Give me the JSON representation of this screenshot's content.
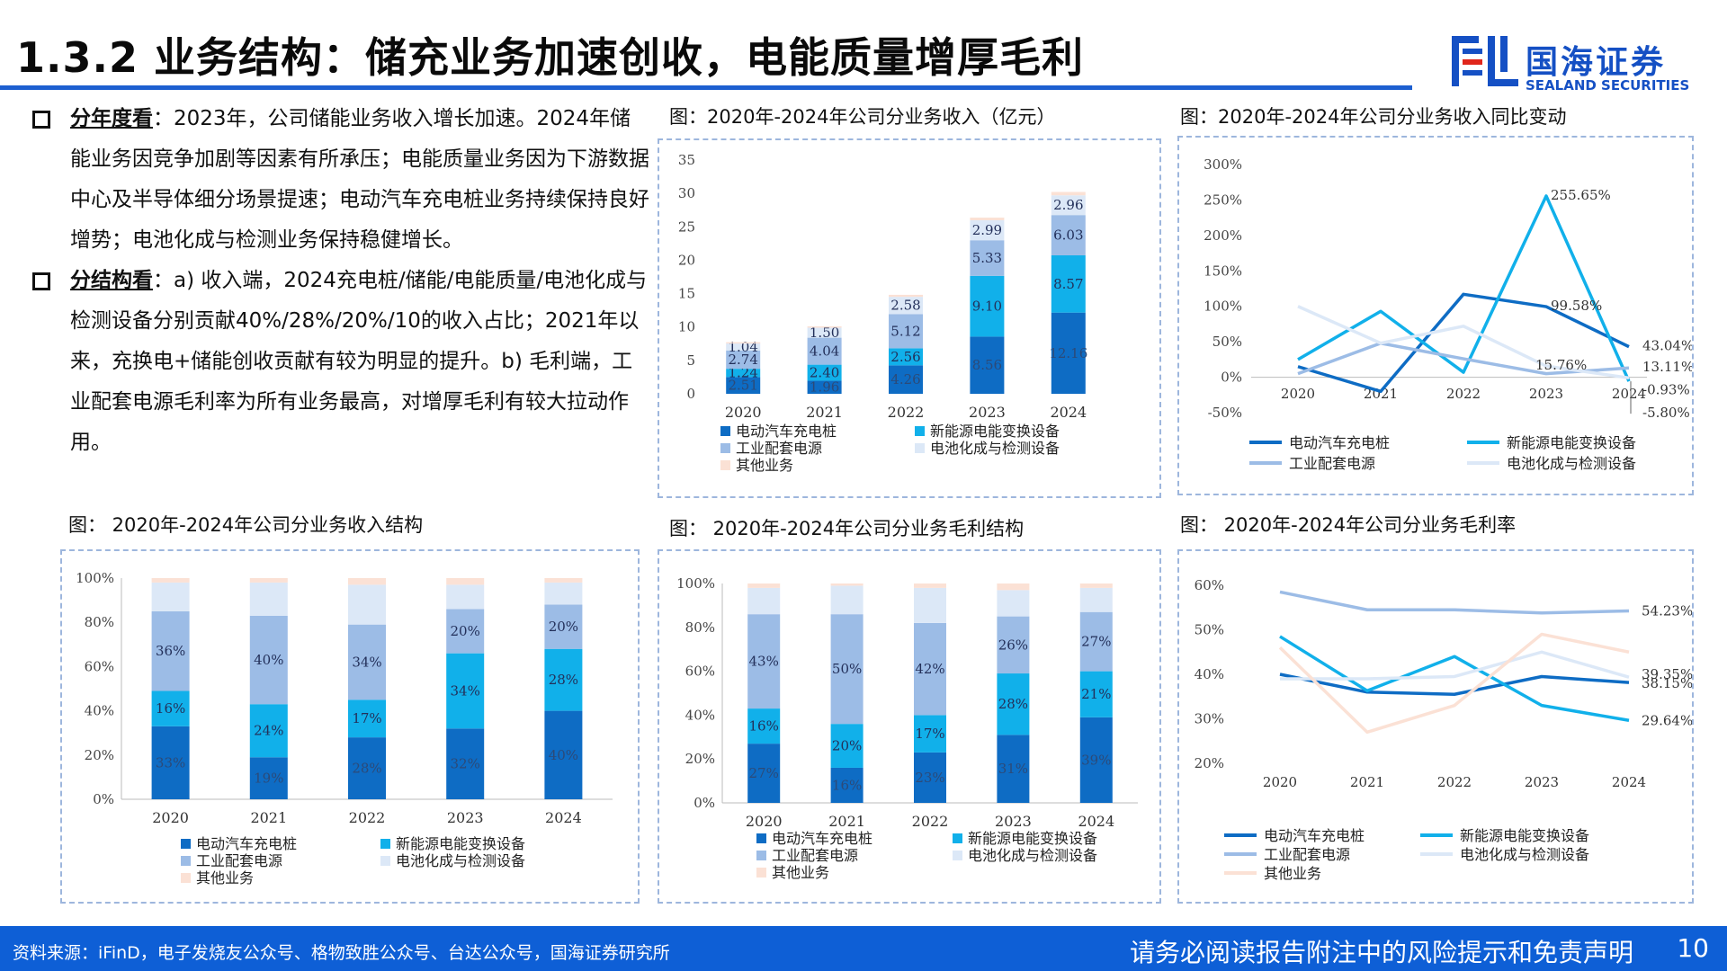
{
  "slide": {
    "title": "1.3.2 业务结构：储充业务加速创收，电能质量增厚毛利",
    "logo_cn": "国海证券",
    "logo_en": "SEALAND SECURITIES",
    "footer_source": "资料来源：iFinD，电子发烧友公众号、格物致胜公众号、台达公众号，国海证券研究所",
    "footer_notice": "请务必阅读报告附注中的风险提示和免责声明",
    "page_number": "10"
  },
  "text": {
    "bullet1_head": "分年度看",
    "bullet1_body": "：2023年，公司储能业务收入增长加速。2024年储能业务因竞争加剧等因素有所承压；电能质量业务因为下游数据中心及半导体细分场景提速；电动汽车充电桩业务持续保持良好增势；电池化成与检测业务保持稳健增长。",
    "bullet2_head": "分结构看",
    "bullet2_body": "：a) 收入端，2024充电桩/储能/电能质量/电池化成与检测设备分别贡献40%/28%/20%/10的收入占比；2021年以来，充换电+储能创收贡献有较为明显的提升。b) 毛利端，工业配套电源毛利率为所有业务最高，对增厚毛利有较大拉动作用。"
  },
  "colors": {
    "ev": "#0e6cc4",
    "nev": "#11b0ea",
    "ind": "#9cbce6",
    "bat": "#dce8f7",
    "oth": "#fbe1d5"
  },
  "chart_data": [
    {
      "id": "revenue",
      "type": "bar",
      "stacked": true,
      "title": "图：2020年-2024年公司分业务收入（亿元）",
      "categories": [
        "2020",
        "2021",
        "2022",
        "2023",
        "2024"
      ],
      "ylim": [
        0,
        35
      ],
      "yticks": [
        "0",
        "5",
        "10",
        "15",
        "20",
        "25",
        "30",
        "35"
      ],
      "series": [
        {
          "name": "电动汽车充电桩",
          "color_key": "ev",
          "values": [
            2.51,
            1.96,
            4.26,
            8.56,
            12.16
          ],
          "labels": [
            "2.51",
            "1.96",
            "4.26",
            "8.56",
            "12.16"
          ]
        },
        {
          "name": "新能源电能变换设备",
          "color_key": "nev",
          "values": [
            1.24,
            2.4,
            2.56,
            9.1,
            8.57
          ],
          "labels": [
            "1.24",
            "2.40",
            "2.56",
            "9.10",
            "8.57"
          ]
        },
        {
          "name": "工业配套电源",
          "color_key": "ind",
          "values": [
            2.74,
            4.04,
            5.12,
            5.33,
            6.03
          ],
          "labels": [
            "2.74",
            "4.04",
            "5.12",
            "5.33",
            "6.03"
          ]
        },
        {
          "name": "电池化成与检测设备",
          "color_key": "bat",
          "values": [
            1.04,
            1.5,
            2.58,
            2.99,
            2.96
          ],
          "labels": [
            "1.04",
            "1.50",
            "2.58",
            "2.99",
            "2.96"
          ]
        },
        {
          "name": "其他业务",
          "color_key": "oth",
          "values": [
            0.2,
            0.2,
            0.3,
            0.4,
            0.5
          ],
          "labels": [
            "",
            "",
            "",
            "",
            ""
          ]
        }
      ]
    },
    {
      "id": "yoy",
      "type": "line",
      "title": "图：2020年-2024年公司分业务收入同比变动",
      "categories": [
        "2020",
        "2021",
        "2022",
        "2023",
        "2024"
      ],
      "ylim": [
        -50,
        300
      ],
      "yticks": [
        "-50%",
        "0%",
        "50%",
        "100%",
        "150%",
        "200%",
        "250%",
        "300%"
      ],
      "series": [
        {
          "name": "电动汽车充电桩",
          "color_key": "ev",
          "values": [
            15,
            -20,
            117,
            99.58,
            43.04
          ]
        },
        {
          "name": "新能源电能变换设备",
          "color_key": "nev",
          "values": [
            25,
            93,
            7,
            255.65,
            -5.8
          ]
        },
        {
          "name": "工业配套电源",
          "color_key": "ind",
          "values": [
            5,
            48,
            26,
            5,
            13.11
          ]
        },
        {
          "name": "电池化成与检测设备",
          "color_key": "bat",
          "values": [
            100,
            48,
            72,
            15.76,
            -0.93
          ]
        }
      ],
      "annotations": [
        "255.65%",
        "99.58%",
        "43.04%",
        "13.11%",
        "15.76%",
        "-0.93%",
        "-5.80%"
      ]
    },
    {
      "id": "rev_structure",
      "type": "bar",
      "stacked": true,
      "percent": true,
      "title": "图： 2020年-2024年公司分业务收入结构",
      "categories": [
        "2020",
        "2021",
        "2022",
        "2023",
        "2024"
      ],
      "ylim": [
        0,
        100
      ],
      "yticks": [
        "0%",
        "20%",
        "40%",
        "60%",
        "80%",
        "100%"
      ],
      "series": [
        {
          "name": "电动汽车充电桩",
          "color_key": "ev",
          "values": [
            33,
            19,
            28,
            32,
            40
          ],
          "labels": [
            "33%",
            "19%",
            "28%",
            "32%",
            "40%"
          ]
        },
        {
          "name": "新能源电能变换设备",
          "color_key": "nev",
          "values": [
            16,
            24,
            17,
            34,
            28
          ],
          "labels": [
            "16%",
            "24%",
            "17%",
            "34%",
            "28%"
          ]
        },
        {
          "name": "工业配套电源",
          "color_key": "ind",
          "values": [
            36,
            40,
            34,
            20,
            20
          ],
          "labels": [
            "36%",
            "40%",
            "34%",
            "20%",
            "20%"
          ]
        },
        {
          "name": "电池化成与检测设备",
          "color_key": "bat",
          "values": [
            13,
            15,
            18,
            11,
            10
          ],
          "labels": [
            "",
            "",
            "",
            "",
            ""
          ]
        },
        {
          "name": "其他业务",
          "color_key": "oth",
          "values": [
            2,
            2,
            3,
            3,
            2
          ],
          "labels": [
            "",
            "",
            "",
            "",
            ""
          ]
        }
      ]
    },
    {
      "id": "gp_structure",
      "type": "bar",
      "stacked": true,
      "percent": true,
      "title": "图： 2020年-2024年公司分业务毛利结构",
      "categories": [
        "2020",
        "2021",
        "2022",
        "2023",
        "2024"
      ],
      "ylim": [
        0,
        100
      ],
      "yticks": [
        "0%",
        "20%",
        "40%",
        "60%",
        "80%",
        "100%"
      ],
      "series": [
        {
          "name": "电动汽车充电桩",
          "color_key": "ev",
          "values": [
            27,
            16,
            23,
            31,
            39
          ],
          "labels": [
            "27%",
            "16%",
            "23%",
            "31%",
            "39%"
          ]
        },
        {
          "name": "新能源电能变换设备",
          "color_key": "nev",
          "values": [
            16,
            20,
            17,
            28,
            21
          ],
          "labels": [
            "16%",
            "20%",
            "17%",
            "28%",
            "21%"
          ]
        },
        {
          "name": "工业配套电源",
          "color_key": "ind",
          "values": [
            43,
            50,
            42,
            26,
            27
          ],
          "labels": [
            "43%",
            "50%",
            "42%",
            "26%",
            "27%"
          ]
        },
        {
          "name": "电池化成与检测设备",
          "color_key": "bat",
          "values": [
            12,
            13,
            16,
            12,
            11
          ],
          "labels": [
            "",
            "",
            "",
            "",
            ""
          ]
        },
        {
          "name": "其他业务",
          "color_key": "oth",
          "values": [
            2,
            1,
            2,
            3,
            2
          ],
          "labels": [
            "",
            "",
            "",
            "",
            ""
          ]
        }
      ]
    },
    {
      "id": "margin",
      "type": "line",
      "title": "图： 2020年-2024年公司分业务毛利率",
      "categories": [
        "2020",
        "2021",
        "2022",
        "2023",
        "2024"
      ],
      "ylim": [
        20,
        60
      ],
      "yticks": [
        "20%",
        "30%",
        "40%",
        "50%",
        "60%"
      ],
      "series": [
        {
          "name": "电动汽车充电桩",
          "color_key": "ev",
          "values": [
            40,
            36,
            35.5,
            39.5,
            38.15
          ]
        },
        {
          "name": "新能源电能变换设备",
          "color_key": "nev",
          "values": [
            48.5,
            36.3,
            44,
            33,
            29.64
          ]
        },
        {
          "name": "工业配套电源",
          "color_key": "ind",
          "values": [
            58.5,
            54.5,
            54.5,
            53.8,
            54.23
          ]
        },
        {
          "name": "电池化成与检测设备",
          "color_key": "bat",
          "values": [
            39,
            39,
            39.5,
            45,
            39.35
          ]
        },
        {
          "name": "其他业务",
          "color_key": "oth",
          "values": [
            46,
            27,
            33,
            49,
            45
          ]
        }
      ],
      "annotations": [
        "54.23%",
        "39.35%",
        "38.15%",
        "29.64%"
      ]
    }
  ]
}
